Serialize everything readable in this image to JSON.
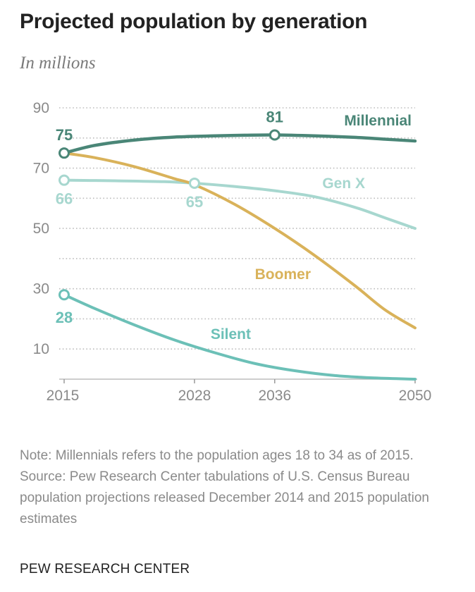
{
  "chart_data": {
    "type": "line",
    "title": "Projected population by generation",
    "subtitle": "In millions",
    "ylim": [
      0,
      90
    ],
    "xlim": [
      2015,
      2050
    ],
    "y_ticks": [
      10,
      30,
      50,
      70,
      90
    ],
    "x_ticks": [
      2015,
      2028,
      2036,
      2050
    ],
    "grid": true,
    "series": [
      {
        "name": "Millennial",
        "color": "#4a8677",
        "x": [
          2015,
          2018,
          2022,
          2026,
          2030,
          2033,
          2036,
          2040,
          2044,
          2047,
          2050
        ],
        "y": [
          75,
          77.5,
          79.3,
          80.3,
          80.7,
          80.9,
          81,
          80.7,
          80.2,
          79.6,
          79
        ],
        "markers": [
          {
            "x": 2015,
            "y": 75,
            "label": "75"
          },
          {
            "x": 2036,
            "y": 81,
            "label": "81"
          }
        ]
      },
      {
        "name": "Gen X",
        "color": "#a7d7cf",
        "x": [
          2015,
          2020,
          2025,
          2028,
          2032,
          2036,
          2040,
          2044,
          2047,
          2050
        ],
        "y": [
          66,
          65.8,
          65.5,
          65,
          63.9,
          62.5,
          60.5,
          57,
          53.5,
          50
        ],
        "markers": [
          {
            "x": 2015,
            "y": 66,
            "label": "66"
          },
          {
            "x": 2028,
            "y": 65,
            "label": "65"
          }
        ]
      },
      {
        "name": "Boomer",
        "color": "#d9b25a",
        "x": [
          2015,
          2018,
          2022,
          2026,
          2028,
          2032,
          2036,
          2040,
          2044,
          2047,
          2050
        ],
        "y": [
          75,
          73.5,
          70.5,
          66.5,
          64.5,
          58,
          50,
          41,
          31,
          23,
          17
        ],
        "markers": []
      },
      {
        "name": "Silent",
        "color": "#6cc0b7",
        "x": [
          2015,
          2018,
          2022,
          2026,
          2030,
          2034,
          2038,
          2042,
          2046,
          2050
        ],
        "y": [
          28,
          23.5,
          18,
          13,
          8.8,
          5.2,
          2.8,
          1.2,
          0.4,
          0
        ],
        "markers": [
          {
            "x": 2015,
            "y": 28,
            "label": "28"
          }
        ]
      }
    ]
  },
  "notes": {
    "note": "Note: Millennials refers to the population ages 18 to 34 as of 2015.",
    "source": "Source: Pew Research Center tabulations of U.S. Census Bureau population projections released December 2014 and 2015 population estimates"
  },
  "footer": "PEW RESEARCH CENTER"
}
